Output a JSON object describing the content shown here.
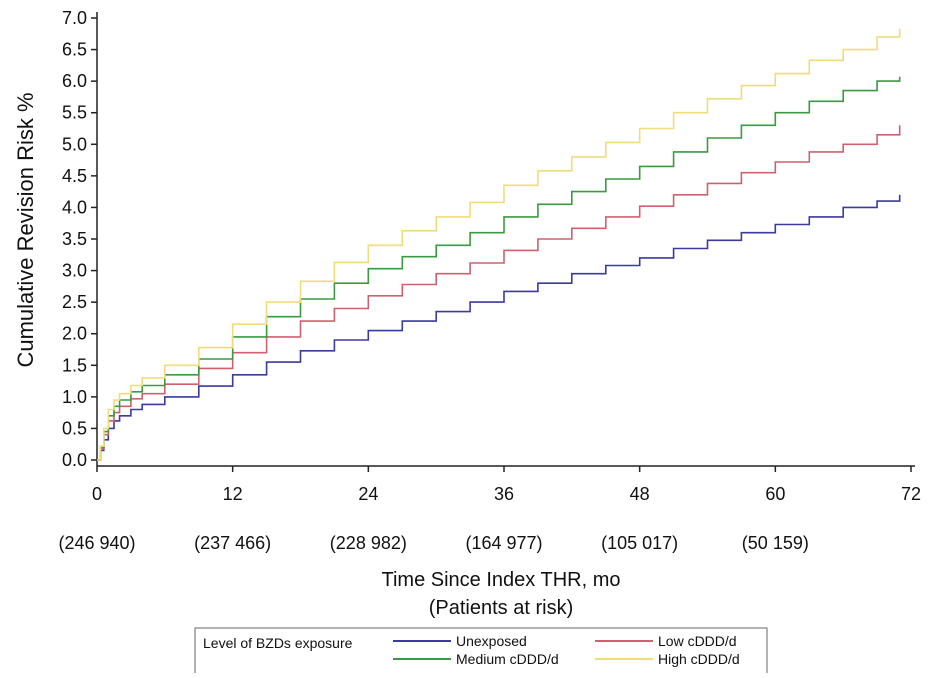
{
  "chart_data": {
    "type": "line",
    "title": "",
    "xlabel": "Time Since Index THR, mo",
    "xlabel_sub": "(Patients at risk)",
    "ylabel": "Cumulative Revision Risk %",
    "xlim": [
      0,
      72
    ],
    "ylim": [
      0,
      7.0
    ],
    "xticks": [
      0,
      12,
      24,
      36,
      48,
      60,
      72
    ],
    "yticks": [
      0.0,
      0.5,
      1.0,
      1.5,
      2.0,
      2.5,
      3.0,
      3.5,
      4.0,
      4.5,
      5.0,
      5.5,
      6.0,
      6.5,
      7.0
    ],
    "ytick_labels": [
      "0.0",
      "0.5",
      "1.0",
      "1.5",
      "2.0",
      "2.5",
      "3.0",
      "3.5",
      "4.0",
      "4.5",
      "5.0",
      "5.5",
      "6.0",
      "6.5",
      "7.0"
    ],
    "xtick_labels": [
      "0",
      "12",
      "24",
      "36",
      "48",
      "60",
      "72"
    ],
    "at_risk": [
      "(246 940)",
      "(237 466)",
      "(228 982)",
      "(164 977)",
      "(105 017)",
      "(50 159)"
    ],
    "grid": false,
    "legend_position": "bottom",
    "legend_title": "Level of BZDs exposure",
    "series": [
      {
        "name": "Unexposed",
        "color": "#3a3aa0",
        "x": [
          0,
          0.3,
          0.6,
          1,
          1.5,
          2,
          3,
          4,
          6,
          9,
          12,
          15,
          18,
          21,
          24,
          27,
          30,
          33,
          36,
          39,
          42,
          45,
          48,
          51,
          54,
          57,
          60,
          63,
          66,
          69,
          71
        ],
        "y": [
          0,
          0.15,
          0.32,
          0.5,
          0.62,
          0.7,
          0.8,
          0.88,
          1.0,
          1.17,
          1.35,
          1.55,
          1.73,
          1.9,
          2.05,
          2.2,
          2.35,
          2.5,
          2.67,
          2.8,
          2.95,
          3.08,
          3.2,
          3.35,
          3.48,
          3.6,
          3.73,
          3.85,
          4.0,
          4.1,
          4.2
        ]
      },
      {
        "name": "Low cDDD/d",
        "color": "#d06070",
        "x": [
          0,
          0.3,
          0.6,
          1,
          1.5,
          2,
          3,
          4,
          6,
          9,
          12,
          15,
          18,
          21,
          24,
          27,
          30,
          33,
          36,
          39,
          42,
          45,
          48,
          51,
          54,
          57,
          60,
          63,
          66,
          69,
          71
        ],
        "y": [
          0,
          0.18,
          0.4,
          0.62,
          0.75,
          0.85,
          0.97,
          1.05,
          1.2,
          1.45,
          1.7,
          1.95,
          2.2,
          2.4,
          2.6,
          2.78,
          2.95,
          3.12,
          3.32,
          3.5,
          3.67,
          3.85,
          4.02,
          4.2,
          4.38,
          4.55,
          4.72,
          4.88,
          5.0,
          5.15,
          5.3
        ]
      },
      {
        "name": "Medium cDDD/d",
        "color": "#3a9a40",
        "x": [
          0,
          0.3,
          0.6,
          1,
          1.5,
          2,
          3,
          4,
          6,
          9,
          12,
          15,
          18,
          21,
          24,
          27,
          30,
          33,
          36,
          39,
          42,
          45,
          48,
          51,
          54,
          57,
          60,
          63,
          66,
          69,
          71
        ],
        "y": [
          0,
          0.2,
          0.45,
          0.7,
          0.85,
          0.95,
          1.08,
          1.18,
          1.35,
          1.6,
          1.95,
          2.27,
          2.55,
          2.8,
          3.03,
          3.22,
          3.4,
          3.6,
          3.85,
          4.05,
          4.25,
          4.45,
          4.65,
          4.88,
          5.1,
          5.3,
          5.5,
          5.68,
          5.85,
          6.0,
          6.07
        ]
      },
      {
        "name": "High cDDD/d",
        "color": "#f2dc7a",
        "x": [
          0,
          0.3,
          0.6,
          1,
          1.5,
          2,
          3,
          4,
          6,
          9,
          12,
          15,
          18,
          21,
          24,
          27,
          30,
          33,
          36,
          39,
          42,
          45,
          48,
          51,
          54,
          57,
          60,
          63,
          66,
          69,
          71
        ],
        "y": [
          0,
          0.22,
          0.5,
          0.8,
          0.95,
          1.05,
          1.18,
          1.3,
          1.5,
          1.78,
          2.15,
          2.5,
          2.83,
          3.13,
          3.4,
          3.63,
          3.85,
          4.08,
          4.35,
          4.58,
          4.8,
          5.03,
          5.25,
          5.5,
          5.72,
          5.93,
          6.12,
          6.33,
          6.5,
          6.7,
          6.83
        ]
      }
    ]
  }
}
